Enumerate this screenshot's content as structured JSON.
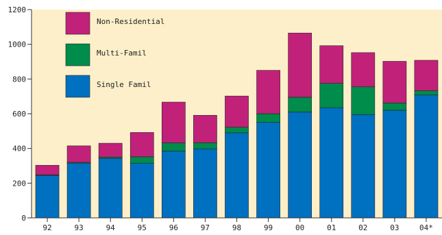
{
  "chart_data": {
    "type": "bar",
    "stacked": true,
    "title": "",
    "xlabel": "",
    "ylabel": "",
    "ylim": [
      0,
      1200
    ],
    "yticks": [
      0,
      200,
      400,
      600,
      800,
      1000,
      1200
    ],
    "categories": [
      "92",
      "93",
      "94",
      "95",
      "96",
      "97",
      "98",
      "99",
      "00",
      "01",
      "02",
      "03",
      "04*"
    ],
    "series": [
      {
        "name": "Single Famil",
        "color": "#0070c0",
        "values": [
          245,
          315,
          343,
          315,
          385,
          398,
          490,
          550,
          610,
          635,
          595,
          620,
          708
        ]
      },
      {
        "name": "Multi-Famil",
        "color": "#008c4a",
        "values": [
          3,
          5,
          7,
          37,
          47,
          35,
          32,
          50,
          85,
          140,
          160,
          42,
          25
        ]
      },
      {
        "name": "Non-Residential",
        "color": "#c2217a",
        "values": [
          55,
          95,
          80,
          140,
          235,
          158,
          180,
          250,
          370,
          217,
          197,
          240,
          175
        ]
      }
    ],
    "legend": {
      "position": "top-left",
      "order": [
        "Non-Residential",
        "Multi-Famil",
        "Single Famil"
      ]
    },
    "grid": false,
    "plot_background": "#fcefc9"
  }
}
